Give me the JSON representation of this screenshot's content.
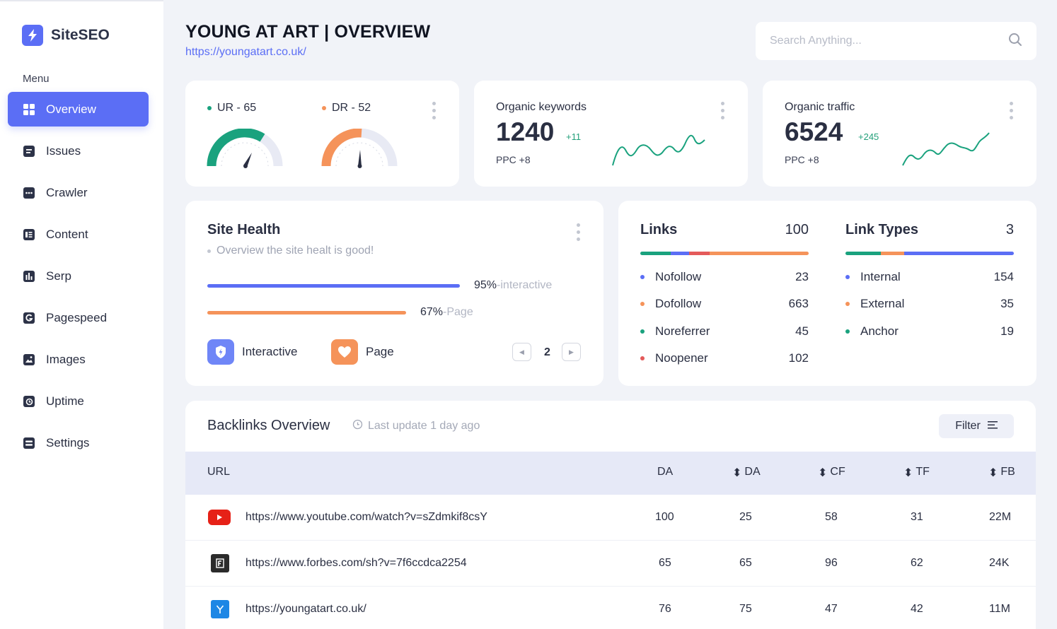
{
  "app": {
    "name": "SiteSEO",
    "menu_label": "Menu"
  },
  "sidebar": {
    "items": [
      {
        "label": "Overview",
        "icon": "grid-icon"
      },
      {
        "label": "Issues",
        "icon": "document-icon"
      },
      {
        "label": "Crawler",
        "icon": "dots-box-icon"
      },
      {
        "label": "Content",
        "icon": "content-icon"
      },
      {
        "label": "Serp",
        "icon": "bar-chart-icon"
      },
      {
        "label": "Pagespeed",
        "icon": "g-icon"
      },
      {
        "label": "Images",
        "icon": "image-icon"
      },
      {
        "label": "Uptime",
        "icon": "clock-icon"
      },
      {
        "label": "Settings",
        "icon": "settings-icon"
      }
    ]
  },
  "header": {
    "title": "YOUNG AT ART | OVERVIEW",
    "url": "https://youngatart.co.uk/",
    "search_placeholder": "Search Anything..."
  },
  "gauges": {
    "ur": {
      "label": "UR - 65",
      "value": 65,
      "color": "#1aa27e"
    },
    "dr": {
      "label": "DR - 52",
      "value": 52,
      "color": "#f5935a"
    }
  },
  "organic_keywords": {
    "title": "Organic keywords",
    "value": "1240",
    "delta": "+11",
    "ppc": "PPC +8"
  },
  "organic_traffic": {
    "title": "Organic traffic",
    "value": "6524",
    "delta": "+245",
    "ppc": "PPC +8"
  },
  "site_health": {
    "title": "Site Health",
    "subtitle": "Overview the site healt is good!",
    "bars": [
      {
        "percent": "95%",
        "label": "-interactive",
        "value": 95,
        "color": "#5b6ef5"
      },
      {
        "percent": "67%",
        "label": "-Page",
        "value": 67,
        "color": "#f5935a"
      }
    ],
    "legend": [
      {
        "label": "Interactive",
        "color": "#6f86f7"
      },
      {
        "label": "Page",
        "color": "#f5935a"
      }
    ],
    "page": "2"
  },
  "links": {
    "title": "Links",
    "total": "100",
    "rows": [
      {
        "label": "Nofollow",
        "value": "23",
        "color": "#5b6ef5"
      },
      {
        "label": "Dofollow",
        "value": "663",
        "color": "#f5935a"
      },
      {
        "label": "Noreferrer",
        "value": "45",
        "color": "#1aa27e"
      },
      {
        "label": "Noopener",
        "value": "102",
        "color": "#e45a5a"
      }
    ]
  },
  "link_types": {
    "title": "Link Types",
    "total": "3",
    "rows": [
      {
        "label": "Internal",
        "value": "154",
        "color": "#5b6ef5"
      },
      {
        "label": "External",
        "value": "35",
        "color": "#f5935a"
      },
      {
        "label": "Anchor",
        "value": "19",
        "color": "#1aa27e"
      }
    ]
  },
  "backlinks": {
    "title": "Backlinks Overview",
    "last_update": "Last update 1 day ago",
    "filter_label": "Filter",
    "columns": [
      "URL",
      "DA",
      "DA",
      "CF",
      "TF",
      "FB"
    ],
    "rows": [
      {
        "url": "https://www.youtube.com/watch?v=sZdmkif8csY",
        "da": "100",
        "da2": "25",
        "cf": "58",
        "tf": "31",
        "fb": "22M",
        "icon": "youtube-icon"
      },
      {
        "url": "https://www.forbes.com/sh?v=7f6ccdca2254",
        "da": "65",
        "da2": "65",
        "cf": "96",
        "tf": "62",
        "fb": "24K",
        "icon": "forbes-icon"
      },
      {
        "url": "https://youngatart.co.uk/",
        "da": "76",
        "da2": "75",
        "cf": "47",
        "tf": "42",
        "fb": "11M",
        "icon": "y-icon"
      }
    ]
  }
}
